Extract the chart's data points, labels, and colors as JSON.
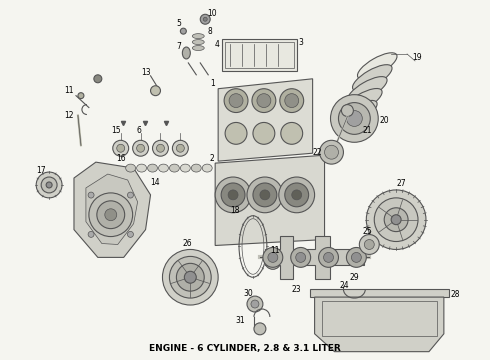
{
  "title": "ENGINE - 6 CYLINDER, 2.8 & 3.1 LITER",
  "title_fontsize": 6.5,
  "title_fontweight": "bold",
  "bg_color": "#f5f5f0",
  "fig_width": 4.9,
  "fig_height": 3.6,
  "dpi": 100,
  "line_color": "#555555",
  "lw_main": 0.8,
  "lw_thin": 0.5,
  "lw_thick": 1.1
}
